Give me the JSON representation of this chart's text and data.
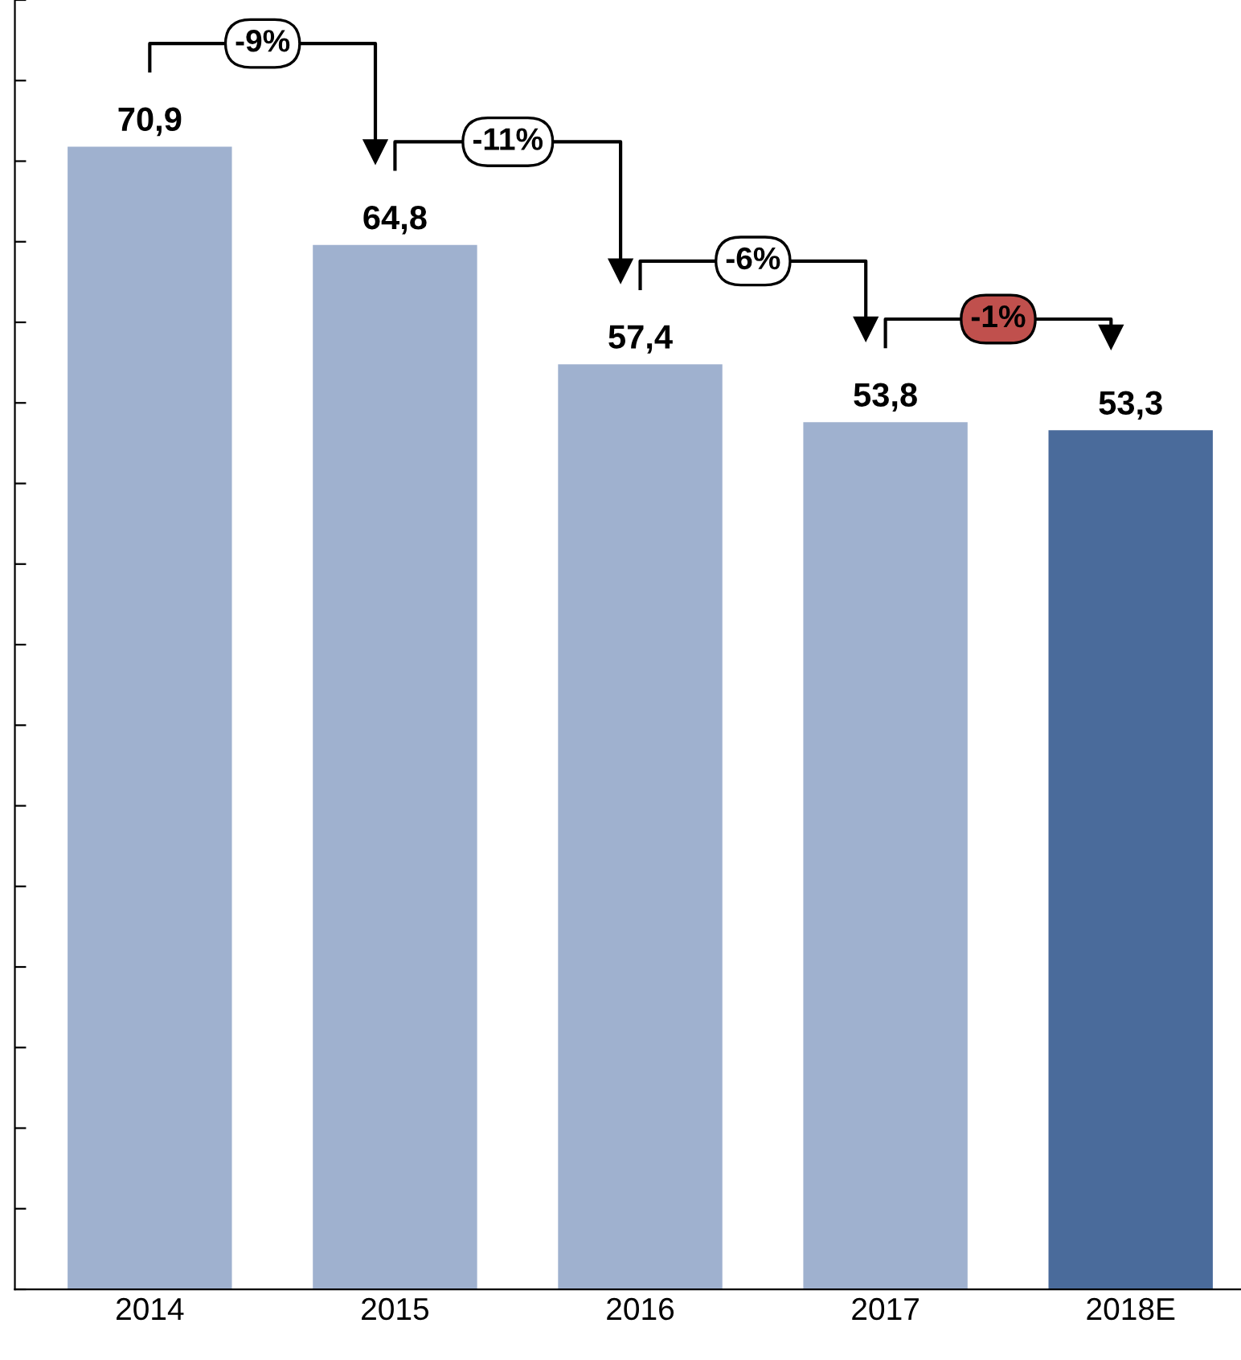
{
  "chart_data": {
    "type": "bar",
    "categories": [
      "2014",
      "2015",
      "2016",
      "2017",
      "2018E"
    ],
    "values": [
      70.9,
      64.8,
      57.4,
      53.8,
      53.3
    ],
    "value_labels": [
      "70,9",
      "64,8",
      "57,4",
      "53,8",
      "53,3"
    ],
    "colors": [
      "#9fb1cf",
      "#9fb1cf",
      "#9fb1cf",
      "#9fb1cf",
      "#4a6b9b"
    ],
    "ylim": [
      0,
      80
    ],
    "yticks": [
      {
        "value": 0,
        "label": null
      },
      {
        "value": 5,
        "label": null
      },
      {
        "value": 10,
        "label": null
      },
      {
        "value": 15,
        "label": null
      },
      {
        "value": 20,
        "label": null
      },
      {
        "value": 25,
        "label": null
      },
      {
        "value": 30,
        "label": null
      },
      {
        "value": 35,
        "label": null
      },
      {
        "value": 40,
        "label": null
      },
      {
        "value": 45,
        "label": null
      },
      {
        "value": 50,
        "label": null
      },
      {
        "value": 55,
        "label": null
      },
      {
        "value": 60,
        "label": null
      },
      {
        "value": 65,
        "label": null
      },
      {
        "value": 70,
        "label": null
      },
      {
        "value": 75,
        "label": null
      },
      {
        "value": 80,
        "label": null
      }
    ],
    "tick_labels": "x",
    "annotations": [
      "-9%",
      "-11%",
      "-6%",
      "-1%"
    ]
  }
}
